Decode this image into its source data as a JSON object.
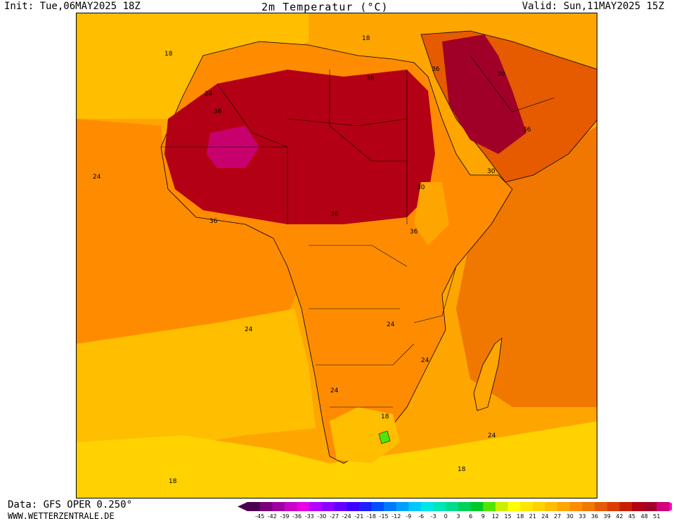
{
  "header": {
    "init": "Init: Tue,06MAY2025 18Z",
    "title": "2m Temperatur (°C)",
    "valid": "Valid: Sun,11MAY2025 15Z"
  },
  "footer": {
    "data_source": "Data: GFS OPER 0.250°",
    "website": "WWW.WETTERZENTRALE.DE"
  },
  "map": {
    "region": "Africa",
    "variable": "2m temperature",
    "unit": "°C",
    "contour_labels": [
      "18",
      "18",
      "24",
      "36",
      "24",
      "36",
      "36",
      "30",
      "36",
      "30",
      "36",
      "36",
      "30",
      "36",
      "24",
      "24",
      "24",
      "24",
      "18",
      "24",
      "18",
      "18"
    ]
  },
  "legend": {
    "ticks": [
      "-45",
      "-42",
      "-39",
      "-36",
      "-33",
      "-30",
      "-27",
      "-24",
      "-21",
      "-18",
      "-15",
      "-12",
      "-9",
      "-6",
      "-3",
      "0",
      "3",
      "6",
      "9",
      "12",
      "15",
      "18",
      "21",
      "24",
      "27",
      "30",
      "33",
      "36",
      "39",
      "42",
      "45",
      "48",
      "51"
    ],
    "colors": [
      "#4b0050",
      "#7a007a",
      "#a000a0",
      "#c800c8",
      "#e600e6",
      "#b400ff",
      "#8c00ff",
      "#6400ff",
      "#3c00ff",
      "#1e1eff",
      "#0050ff",
      "#0078ff",
      "#00a0ff",
      "#00c8ff",
      "#00e6e6",
      "#00e6b4",
      "#00dc8c",
      "#00d25a",
      "#00c828",
      "#50e600",
      "#c8f000",
      "#ffff00",
      "#ffe600",
      "#ffd200",
      "#ffbe00",
      "#ffa500",
      "#ff8c00",
      "#f07800",
      "#e65a00",
      "#dc3c00",
      "#c81e00",
      "#b40014",
      "#a00028",
      "#d2007d"
    ]
  }
}
